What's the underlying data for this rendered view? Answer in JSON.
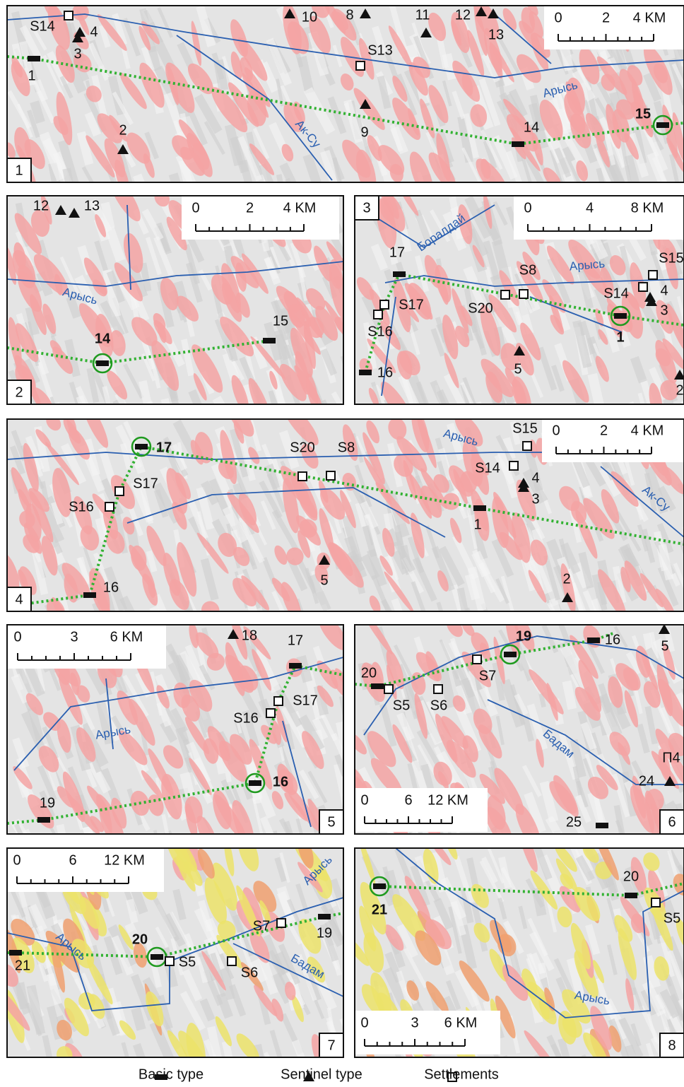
{
  "panels": [
    {
      "number": "1",
      "scale": [
        "0",
        "2",
        "4 KM"
      ],
      "labels": [
        "S14",
        "4",
        "3",
        "1",
        "10",
        "8",
        "11",
        "12",
        "13",
        "S13",
        "9",
        "2",
        "14",
        "15"
      ],
      "rivers": [
        "Арысь",
        "Ак-Су"
      ]
    },
    {
      "number": "2",
      "scale": [
        "0",
        "2",
        "4 KM"
      ],
      "labels": [
        "12",
        "13",
        "14",
        "15"
      ],
      "rivers": [
        "Арысь"
      ]
    },
    {
      "number": "3",
      "scale": [
        "0",
        "4",
        "8 KM"
      ],
      "labels": [
        "17",
        "S8",
        "S20",
        "S15",
        "S14",
        "4",
        "3",
        "S17",
        "S16",
        "1",
        "5",
        "16",
        "2"
      ],
      "rivers": [
        "Боралдай",
        "Арысь"
      ]
    },
    {
      "number": "4",
      "scale": [
        "0",
        "2",
        "4 KM"
      ],
      "labels": [
        "17",
        "S17",
        "S16",
        "16",
        "S20",
        "S8",
        "S15",
        "S14",
        "4",
        "3",
        "1",
        "5",
        "2"
      ],
      "rivers": [
        "Арысь",
        "Ак-Су"
      ]
    },
    {
      "number": "5",
      "scale": [
        "0",
        "3",
        "6 KM"
      ],
      "labels": [
        "18",
        "17",
        "S17",
        "S16",
        "16",
        "19"
      ],
      "rivers": [
        "Арысь"
      ]
    },
    {
      "number": "6",
      "scale": [
        "0",
        "6",
        "12 KM"
      ],
      "labels": [
        "19",
        "16",
        "5",
        "S7",
        "20",
        "S5",
        "S6",
        "П4",
        "24",
        "25"
      ],
      "rivers": [
        "Бадам"
      ]
    },
    {
      "number": "7",
      "scale": [
        "0",
        "6",
        "12 KM"
      ],
      "labels": [
        "S7",
        "19",
        "20",
        "S5",
        "S6",
        "21"
      ],
      "rivers": [
        "Арысь",
        "Арысь",
        "Бадам"
      ]
    },
    {
      "number": "8",
      "scale": [
        "0",
        "3",
        "6 KM"
      ],
      "labels": [
        "21",
        "20",
        "S5"
      ],
      "rivers": [
        "Арысь"
      ]
    }
  ],
  "legend": [
    "Basic type",
    "Sentinel type",
    "Settlements"
  ]
}
